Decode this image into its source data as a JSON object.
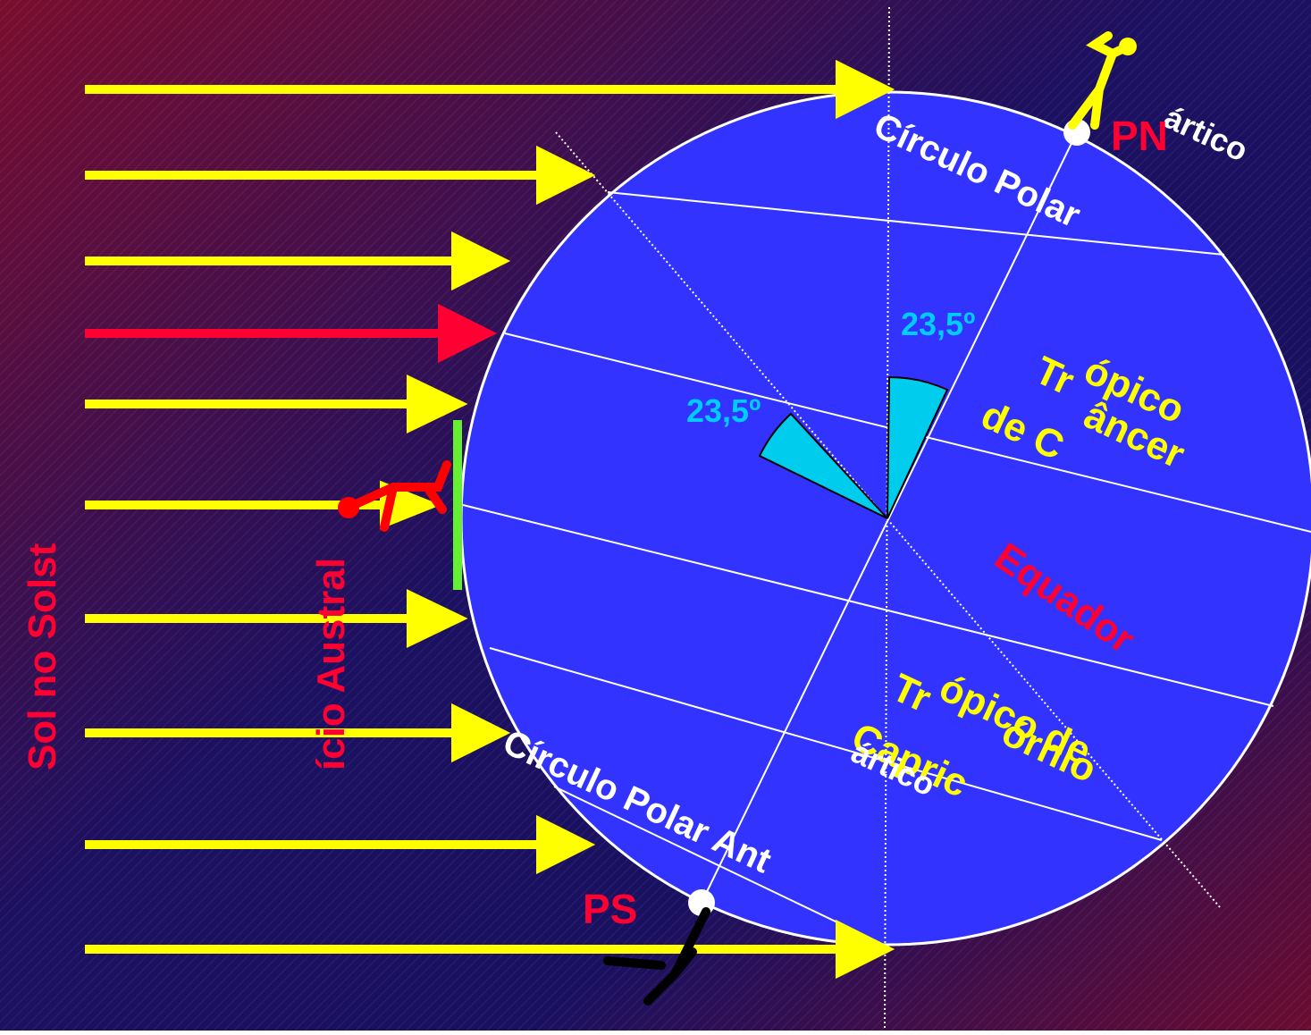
{
  "labels": {
    "arctic_part1": "Círculo Polar",
    "arctic_part2": "ártico",
    "north_pole": "PN",
    "angle_top": "23,5º",
    "angle_left": "23,5º",
    "cancer_part1": "Tr",
    "cancer_part2": "ópico",
    "cancer_part3": "de C",
    "cancer_part4": "âncer",
    "equator": "Equador",
    "capricorn_part1": "Tr",
    "capricorn_part2": "ópico de",
    "capricorn_part3": "Capric",
    "capricorn_part4": "órnio",
    "antarctic_part1": "Círculo Polar Ant",
    "antarctic_part2": "ártico",
    "south_pole": "PS",
    "title_part1": "Sol no Solst",
    "title_part2": "ício Austral"
  }
}
